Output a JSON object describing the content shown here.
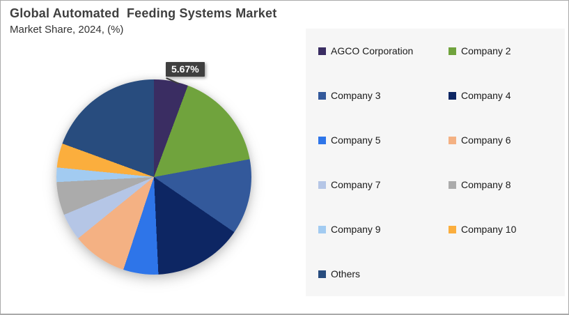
{
  "header": {
    "title": "Global Automated  Feeding Systems Market",
    "subtitle": "Market Share, 2024, (%)"
  },
  "callout": {
    "text": "5.67%",
    "target_slice": "AGCO Corporation"
  },
  "colors": {
    "callout_bg": "#3f3f3f",
    "legend_panel_bg": "#f6f6f6",
    "title_text": "#3f3f3f",
    "page_border": "#a9a9a9"
  },
  "chart_data": {
    "type": "pie",
    "title": "Global Automated  Feeding Systems Market",
    "subtitle": "Market Share, 2024, (%)",
    "start_angle_deg": 0,
    "direction": "clockwise",
    "legend_position": "right",
    "data_labels": [
      {
        "slice": "AGCO Corporation",
        "text": "5.67%"
      }
    ],
    "slices": [
      {
        "label": "AGCO Corporation",
        "value": 5.67,
        "color": "#3A2D62"
      },
      {
        "label": "Company 2",
        "value": 16.4,
        "color": "#70A33D"
      },
      {
        "label": "Company 3",
        "value": 12.5,
        "color": "#33599B"
      },
      {
        "label": "Company 4",
        "value": 14.7,
        "color": "#0D2663"
      },
      {
        "label": "Company 5",
        "value": 5.8,
        "color": "#2E75E9"
      },
      {
        "label": "Company 6",
        "value": 9.1,
        "color": "#F4B183"
      },
      {
        "label": "Company 7",
        "value": 4.5,
        "color": "#B5C6E6"
      },
      {
        "label": "Company 8",
        "value": 5.5,
        "color": "#ABABAB"
      },
      {
        "label": "Company 9",
        "value": 2.4,
        "color": "#A2CBF1"
      },
      {
        "label": "Company 10",
        "value": 4.0,
        "color": "#FBAE3D"
      },
      {
        "label": "Others",
        "value": 19.43,
        "color": "#284C7E"
      }
    ]
  }
}
